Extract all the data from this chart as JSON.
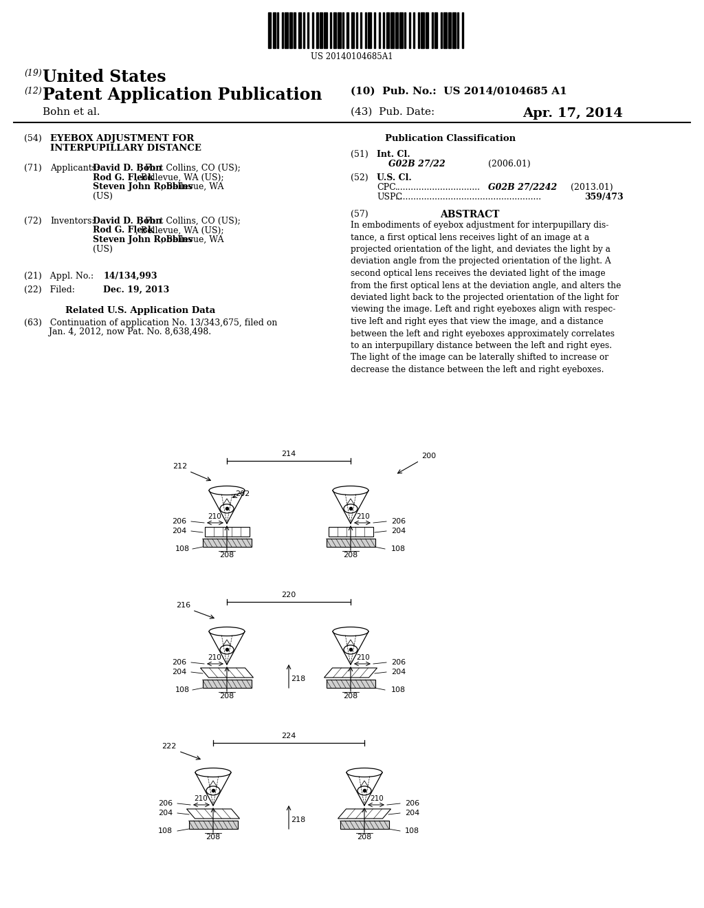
{
  "background_color": "#ffffff",
  "barcode_text": "US 20140104685A1",
  "header_line1_num": "(19)",
  "header_line1_text": "United States",
  "header_line2_num": "(12)",
  "header_line2_text": "Patent Application Publication",
  "header_line2_right1": "(10)  Pub. No.:  US 2014/0104685 A1",
  "header_author": "Bohn et al.",
  "header_date_label": "(43)  Pub. Date:",
  "header_date_value": "Apr. 17, 2014",
  "title_num": "(54)",
  "title_line1": "EYEBOX ADJUSTMENT FOR",
  "title_line2": "INTERPUPILLARY DISTANCE",
  "applicants_num": "(71)",
  "applicants_label": "Applicants:",
  "applicants_text": "David D. Bohn, Fort Collins, CO (US);\nRod G. Fleck, Bellevue, WA (US);\nSteven John Robbins, Bellevue, WA\n(US)",
  "inventors_num": "(72)",
  "inventors_label": "Inventors:",
  "inventors_text": "David D. Bohn, Fort Collins, CO (US);\nRod G. Fleck, Bellevue, WA (US);\nSteven John Robbins, Bellevue, WA\n(US)",
  "appl_num_label": "(21)   Appl. No.:",
  "appl_num_value": "14/134,993",
  "filed_label": "(22)   Filed:",
  "filed_value": "Dec. 19, 2013",
  "related_title": "Related U.S. Application Data",
  "related_text": "(63)   Continuation of application No. 13/343,675, filed on\n         Jan. 4, 2012, now Pat. No. 8,638,498.",
  "pub_class_title": "Publication Classification",
  "int_cl_num": "(51)",
  "int_cl_label": "Int. Cl.",
  "int_cl_class": "G02B 27/22",
  "int_cl_year": "(2006.01)",
  "us_cl_num": "(52)",
  "us_cl_label": "U.S. Cl.",
  "cpc_label": "CPC",
  "cpc_dots": "................................",
  "cpc_class": "G02B 27/2242",
  "cpc_year": "(2013.01)",
  "uspc_label": "USPC",
  "uspc_dots": ".......................................................",
  "uspc_value": "359/473",
  "abstract_num": "(57)",
  "abstract_title": "ABSTRACT",
  "abstract_text": "In embodiments of eyebox adjustment for interpupillary dis-\ntance, a first optical lens receives light of an image at a\nprojected orientation of the light, and deviates the light by a\ndeviation angle from the projected orientation of the light. A\nsecond optical lens receives the deviated light of the image\nfrom the first optical lens at the deviation angle, and alters the\ndeviated light back to the projected orientation of the light for\nviewing the image. Left and right eyeboxes align with respec-\ntive left and right eyes that view the image, and a distance\nbetween the left and right eyeboxes approximately correlates\nto an interpupillary distance between the left and right eyes.\nThe light of the image can be laterally shifted to increase or\ndecrease the distance between the left and right eyeboxes.",
  "fig_color": "#000000",
  "fig_bg": "#ffffff"
}
